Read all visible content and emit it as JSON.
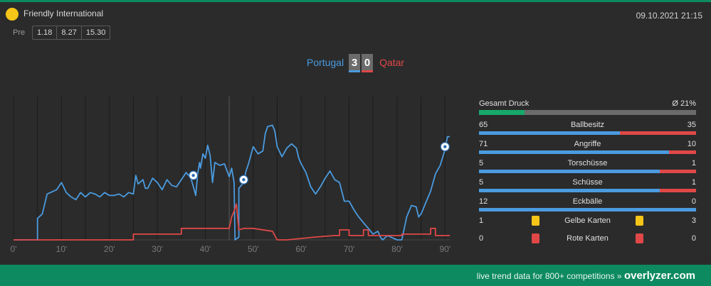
{
  "header": {
    "competition": "Friendly International",
    "datetime": "09.10.2021 21:15",
    "odds_label": "Pre",
    "odds": [
      "1.18",
      "8.27",
      "15.30"
    ],
    "league_icon_color": "#f5c518"
  },
  "match": {
    "home_team": "Portugal",
    "away_team": "Qatar",
    "home_score": "3",
    "away_score": "0",
    "home_color": "#4a9be0",
    "away_color": "#e04848"
  },
  "stats": {
    "pressure": {
      "label": "Gesamt Druck",
      "value": "Ø 21%",
      "fraction": 0.21
    },
    "rows": [
      {
        "label": "Ballbesitz",
        "home": "65",
        "away": "35"
      },
      {
        "label": "Angriffe",
        "home": "71",
        "away": "10"
      },
      {
        "label": "Torschüsse",
        "home": "5",
        "away": "1"
      },
      {
        "label": "Schüsse",
        "home": "5",
        "away": "1"
      },
      {
        "label": "Eckbälle",
        "home": "12",
        "away": "0"
      }
    ],
    "cards": [
      {
        "label": "Gelbe Karten",
        "home": "1",
        "away": "3"
      },
      {
        "label": "Rote Karten",
        "home": "0",
        "away": "0"
      }
    ]
  },
  "chart_data": {
    "type": "line",
    "x_ticks": [
      "0'",
      "10'",
      "20'",
      "30'",
      "40'",
      "50'",
      "60'",
      "70'",
      "80'",
      "90'"
    ],
    "xlim": [
      0,
      91
    ],
    "ylim": [
      0,
      100
    ],
    "grid": "vertical",
    "series": [
      {
        "name": "Portugal",
        "color": "#4a9be0",
        "points": [
          [
            0,
            0
          ],
          [
            5,
            0
          ],
          [
            5,
            15
          ],
          [
            6,
            18
          ],
          [
            7,
            32
          ],
          [
            9,
            35
          ],
          [
            10,
            40
          ],
          [
            11,
            33
          ],
          [
            12,
            30
          ],
          [
            13,
            28
          ],
          [
            14,
            33
          ],
          [
            15,
            30
          ],
          [
            16,
            33
          ],
          [
            17,
            32
          ],
          [
            18,
            30
          ],
          [
            19,
            33
          ],
          [
            20,
            31
          ],
          [
            21,
            31
          ],
          [
            22,
            32
          ],
          [
            23,
            30
          ],
          [
            24,
            33
          ],
          [
            25,
            32
          ],
          [
            25.5,
            45
          ],
          [
            26,
            39
          ],
          [
            27,
            42
          ],
          [
            27.5,
            36
          ],
          [
            28,
            36
          ],
          [
            29,
            43
          ],
          [
            30,
            40
          ],
          [
            31,
            35
          ],
          [
            32,
            42
          ],
          [
            33,
            38
          ],
          [
            34,
            37
          ],
          [
            35,
            42
          ],
          [
            36,
            47
          ],
          [
            37,
            43
          ],
          [
            37.6,
            36
          ],
          [
            38,
            31
          ],
          [
            38.4,
            46
          ],
          [
            38.8,
            54
          ],
          [
            39,
            50
          ],
          [
            39.5,
            60
          ],
          [
            40,
            57
          ],
          [
            40.5,
            66
          ],
          [
            41,
            59
          ],
          [
            41.5,
            40
          ],
          [
            42,
            54
          ],
          [
            43,
            52
          ],
          [
            44,
            53
          ],
          [
            45,
            44
          ],
          [
            45.5,
            50
          ],
          [
            46,
            40
          ],
          [
            46.2,
            0
          ],
          [
            47,
            2
          ],
          [
            47,
            36
          ],
          [
            48,
            40
          ],
          [
            48.5,
            48
          ],
          [
            49,
            53
          ],
          [
            50,
            65
          ],
          [
            51,
            60
          ],
          [
            52,
            62
          ],
          [
            52.5,
            74
          ],
          [
            53,
            79
          ],
          [
            54,
            80
          ],
          [
            54.5,
            76
          ],
          [
            55,
            65
          ],
          [
            56,
            58
          ],
          [
            57,
            64
          ],
          [
            58,
            67
          ],
          [
            59,
            64
          ],
          [
            59.5,
            57
          ],
          [
            60,
            53
          ],
          [
            61,
            47
          ],
          [
            62,
            37
          ],
          [
            63,
            32
          ],
          [
            64,
            37
          ],
          [
            65,
            43
          ],
          [
            66,
            48
          ],
          [
            67,
            42
          ],
          [
            68,
            40
          ],
          [
            69,
            27
          ],
          [
            70,
            27
          ],
          [
            71,
            21
          ],
          [
            72,
            16
          ],
          [
            73,
            12
          ],
          [
            74,
            8
          ],
          [
            75,
            4
          ],
          [
            76,
            6
          ],
          [
            76.5,
            2
          ],
          [
            77,
            0
          ],
          [
            78,
            3
          ],
          [
            80,
            0
          ],
          [
            81,
            0
          ],
          [
            82,
            16
          ],
          [
            83,
            24
          ],
          [
            84,
            23
          ],
          [
            84.5,
            16
          ],
          [
            85,
            18
          ],
          [
            86,
            26
          ],
          [
            87,
            34
          ],
          [
            88,
            46
          ],
          [
            89,
            52
          ],
          [
            90,
            63
          ],
          [
            90.5,
            72
          ],
          [
            91,
            72
          ]
        ]
      },
      {
        "name": "Qatar",
        "color": "#e04848",
        "points": [
          [
            0,
            0
          ],
          [
            25,
            0
          ],
          [
            25,
            4
          ],
          [
            35,
            4
          ],
          [
            35,
            8
          ],
          [
            43,
            8
          ],
          [
            45,
            8
          ],
          [
            45.5,
            16
          ],
          [
            46,
            20
          ],
          [
            46.5,
            25
          ],
          [
            47,
            7
          ],
          [
            48,
            8
          ],
          [
            50,
            8
          ],
          [
            54,
            6
          ],
          [
            55,
            0
          ],
          [
            57,
            0
          ],
          [
            60,
            1
          ],
          [
            63,
            2
          ],
          [
            67,
            3
          ],
          [
            68,
            3
          ],
          [
            68,
            7
          ],
          [
            70,
            7
          ],
          [
            70,
            3
          ],
          [
            73,
            3
          ],
          [
            73,
            7
          ],
          [
            74,
            7
          ],
          [
            74,
            3
          ],
          [
            81,
            3
          ],
          [
            81,
            4
          ],
          [
            87,
            4
          ],
          [
            87,
            8
          ],
          [
            88,
            8
          ],
          [
            88,
            3
          ],
          [
            91,
            3
          ]
        ]
      }
    ],
    "goals": [
      {
        "team": "Portugal",
        "minute": 37.5
      },
      {
        "team": "Portugal",
        "minute": 48
      },
      {
        "team": "Portugal",
        "minute": 90
      }
    ]
  },
  "footer": {
    "text": "live trend data for 800+ competitions »",
    "brand": "overlyzer.com"
  }
}
